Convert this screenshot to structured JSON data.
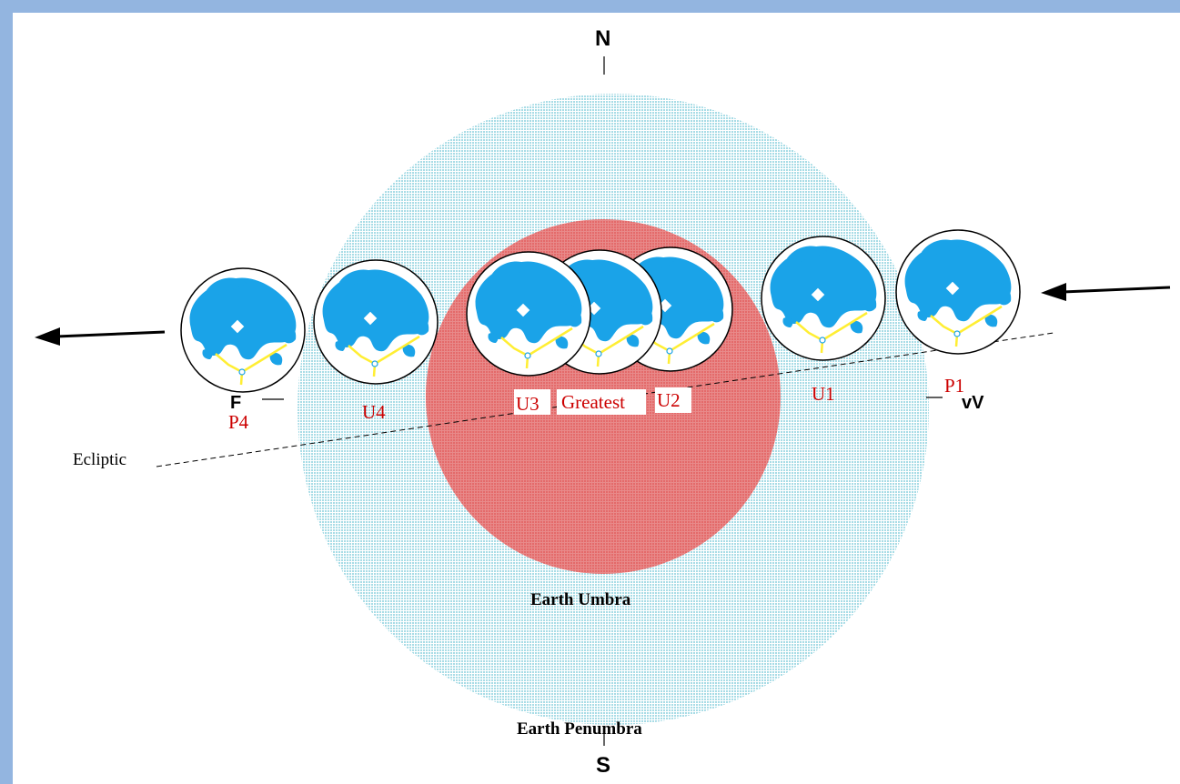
{
  "compass": {
    "north": "N",
    "south": "S"
  },
  "shadows": {
    "umbra_label": "Earth Umbra",
    "penumbra_label": "Earth Penumbra"
  },
  "ecliptic_label": "Ecliptic",
  "contacts": {
    "p4": "P4",
    "u4": "U4",
    "u3": "U3",
    "greatest": "Greatest",
    "u2": "U2",
    "u1": "U1",
    "p1": "P1"
  },
  "marks": {
    "left": "F",
    "right": "vV"
  },
  "colors": {
    "frame": "#93b5e0",
    "penumbra": "#a8dce6",
    "umbra": "#e46a6a",
    "moon_maria": "#1aa3e8",
    "crater_rays": "#ffee33",
    "contact_label": "#cc0000"
  }
}
